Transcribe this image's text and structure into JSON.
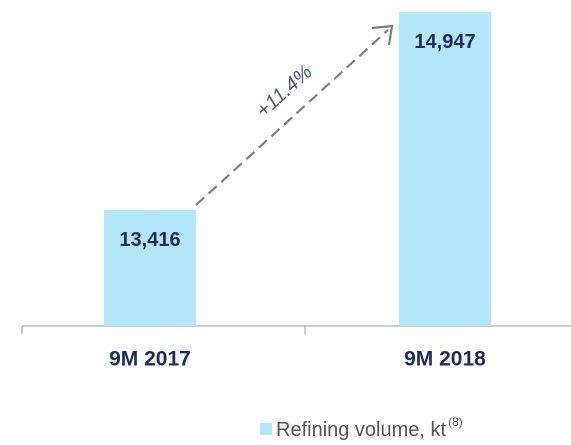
{
  "chart_data": {
    "type": "bar",
    "categories": [
      "9M 2017",
      "9M 2018"
    ],
    "series": [
      {
        "name": "Refining volume, kt",
        "color": "#b3e5fb",
        "values": [
          13416,
          14947
        ],
        "value_labels": [
          "13,416",
          "14,947"
        ]
      }
    ],
    "legend_note": "(8)",
    "annotation": "+11.4%",
    "ylim": [
      12519,
      15000
    ]
  }
}
